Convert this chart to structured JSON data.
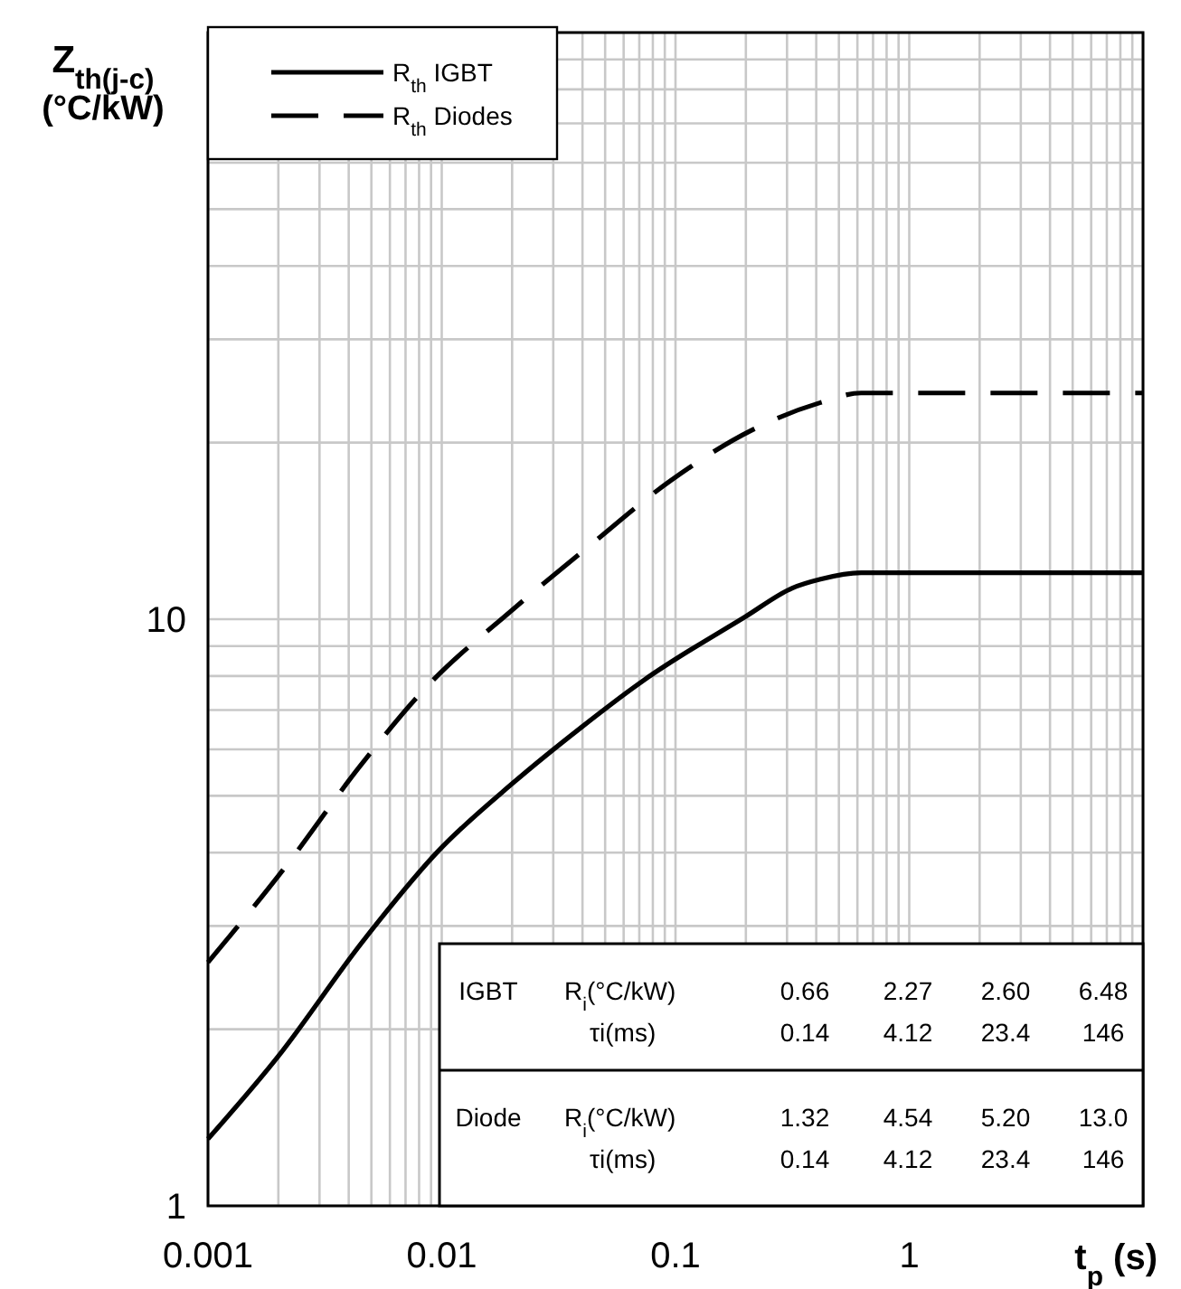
{
  "chart_data": {
    "type": "line",
    "xlabel": "t$_{p}$ (s)",
    "ylabel": "Z$_{th(j-c)}$ (°C/kW)",
    "log": "xy",
    "grid": true,
    "legend": "top left",
    "xlim": [
      0.001,
      10
    ],
    "ylim": [
      1,
      100
    ],
    "xticks": [
      0.001,
      {
        "value": 0.002,
        "label": null
      },
      {
        "value": 0.003,
        "label": null
      },
      {
        "value": 0.004,
        "label": null
      },
      {
        "value": 0.005,
        "label": null
      },
      {
        "value": 0.006,
        "label": null
      },
      {
        "value": 0.007,
        "label": null
      },
      {
        "value": 0.008,
        "label": null
      },
      {
        "value": 0.009,
        "label": null
      },
      0.01,
      {
        "value": 0.02,
        "label": null
      },
      {
        "value": 0.03,
        "label": null
      },
      {
        "value": 0.04,
        "label": null
      },
      {
        "value": 0.05,
        "label": null
      },
      {
        "value": 0.06,
        "label": null
      },
      {
        "value": 0.07,
        "label": null
      },
      {
        "value": 0.08,
        "label": null
      },
      {
        "value": 0.09,
        "label": null
      },
      0.1,
      {
        "value": 0.2,
        "label": null
      },
      {
        "value": 0.3,
        "label": null
      },
      {
        "value": 0.4,
        "label": null
      },
      {
        "value": 0.5,
        "label": null
      },
      {
        "value": 0.6,
        "label": null
      },
      {
        "value": 0.7,
        "label": null
      },
      {
        "value": 0.8,
        "label": null
      },
      {
        "value": 0.9,
        "label": null
      },
      1,
      {
        "value": 2,
        "label": null
      },
      {
        "value": 3,
        "label": null
      },
      {
        "value": 4,
        "label": null
      },
      {
        "value": 5,
        "label": null
      },
      {
        "value": 6,
        "label": null
      },
      {
        "value": 7,
        "label": null
      },
      {
        "value": 8,
        "label": null
      },
      {
        "value": 9,
        "label": null
      },
      {
        "value": 10,
        "label": null
      }
    ],
    "yticks": [
      1,
      {
        "value": 2,
        "label": null
      },
      {
        "value": 3,
        "label": null
      },
      {
        "value": 4,
        "label": null
      },
      {
        "value": 5,
        "label": null
      },
      {
        "value": 6,
        "label": null
      },
      {
        "value": 7,
        "label": null
      },
      {
        "value": 8,
        "label": null
      },
      {
        "value": 9,
        "label": null
      },
      10,
      {
        "value": 20,
        "label": null
      },
      {
        "value": 30,
        "label": null
      },
      {
        "value": 40,
        "label": null
      },
      {
        "value": 50,
        "label": null
      },
      {
        "value": 60,
        "label": null
      },
      {
        "value": 70,
        "label": null
      },
      {
        "value": 80,
        "label": null
      },
      {
        "value": 90,
        "label": null
      },
      {
        "value": 100,
        "label": null
      }
    ],
    "series": [
      {
        "name": "R$_{th}$ IGBT",
        "color": "#000000",
        "line_style": "solid",
        "x": [
          0.001,
          0.002,
          0.00458,
          0.00963,
          0.0202,
          0.0399,
          0.0738,
          0.199,
          0.316,
          0.417,
          0.622,
          10
        ],
        "values": [
          1.3,
          1.8,
          2.82,
          4.02,
          5.26,
          6.56,
          7.89,
          10.1,
          11.3,
          11.7,
          12.0,
          12.0
        ]
      },
      {
        "name": "R$_{th}$ Diodes",
        "color": "#000000",
        "line_style": "dashed",
        "x": [
          0.001,
          0.00213,
          0.00446,
          0.0083,
          0.0202,
          0.0425,
          0.0948,
          0.212,
          0.417,
          0.622,
          10
        ],
        "values": [
          2.6,
          3.77,
          5.61,
          7.55,
          10.4,
          13.3,
          17.2,
          21.0,
          23.4,
          24.3,
          24.3
        ]
      }
    ],
    "annotations": [
      "IGBT",
      "R$_{i}$(°C/kW)",
      "0.66",
      "2.27",
      "2.60",
      "6.48",
      "τi(ms)",
      "0.14",
      "4.12",
      "23.4",
      "146",
      "Diode",
      "R$_{i}$(°C/kW)",
      "1.32",
      "4.54",
      "5.20",
      "13.0",
      "τi(ms)",
      "0.14",
      "4.12",
      "23.4",
      "146"
    ]
  }
}
